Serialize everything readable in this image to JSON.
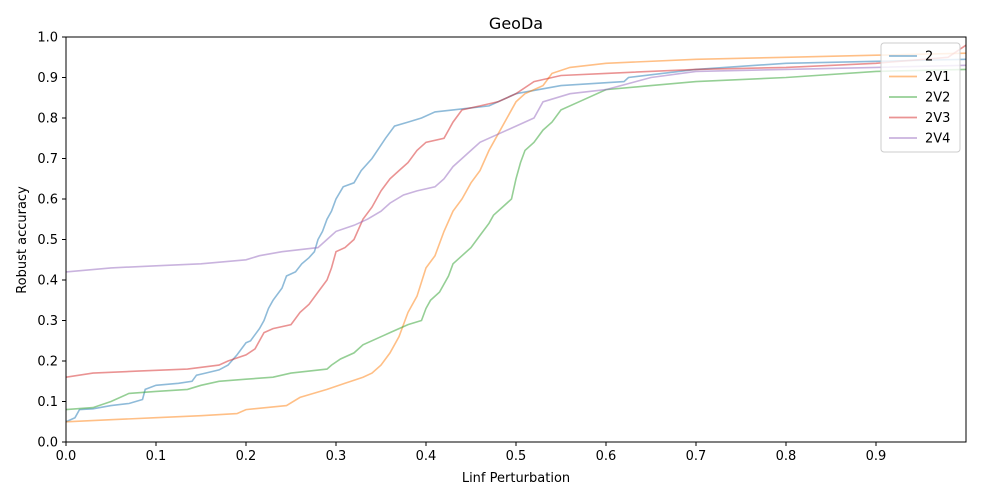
{
  "chart_data": {
    "type": "line",
    "title": "GeoDa",
    "xlabel": "Linf Perturbation",
    "ylabel": "Robust accuracy",
    "xlim": [
      0,
      1.0
    ],
    "ylim": [
      0,
      1.0
    ],
    "xticks": [
      "0.0",
      "0.1",
      "0.2",
      "0.3",
      "0.4",
      "0.5",
      "0.6",
      "0.7",
      "0.8",
      "0.9"
    ],
    "yticks": [
      "0.0",
      "0.1",
      "0.2",
      "0.3",
      "0.4",
      "0.5",
      "0.6",
      "0.7",
      "0.8",
      "0.9",
      "1.0"
    ],
    "grid": false,
    "legend_position": "top-right",
    "series": [
      {
        "name": "2",
        "color": "#1f77b4",
        "points": [
          [
            0.0,
            0.05
          ],
          [
            0.01,
            0.06
          ],
          [
            0.015,
            0.08
          ],
          [
            0.03,
            0.082
          ],
          [
            0.05,
            0.09
          ],
          [
            0.07,
            0.095
          ],
          [
            0.085,
            0.105
          ],
          [
            0.088,
            0.13
          ],
          [
            0.1,
            0.14
          ],
          [
            0.125,
            0.145
          ],
          [
            0.14,
            0.15
          ],
          [
            0.145,
            0.165
          ],
          [
            0.155,
            0.17
          ],
          [
            0.17,
            0.178
          ],
          [
            0.18,
            0.19
          ],
          [
            0.19,
            0.215
          ],
          [
            0.2,
            0.245
          ],
          [
            0.205,
            0.25
          ],
          [
            0.215,
            0.28
          ],
          [
            0.22,
            0.3
          ],
          [
            0.225,
            0.33
          ],
          [
            0.23,
            0.35
          ],
          [
            0.24,
            0.38
          ],
          [
            0.245,
            0.41
          ],
          [
            0.255,
            0.42
          ],
          [
            0.262,
            0.44
          ],
          [
            0.27,
            0.455
          ],
          [
            0.276,
            0.47
          ],
          [
            0.28,
            0.5
          ],
          [
            0.285,
            0.52
          ],
          [
            0.29,
            0.55
          ],
          [
            0.295,
            0.57
          ],
          [
            0.3,
            0.6
          ],
          [
            0.308,
            0.63
          ],
          [
            0.32,
            0.64
          ],
          [
            0.328,
            0.67
          ],
          [
            0.34,
            0.7
          ],
          [
            0.346,
            0.72
          ],
          [
            0.355,
            0.75
          ],
          [
            0.365,
            0.78
          ],
          [
            0.38,
            0.79
          ],
          [
            0.395,
            0.8
          ],
          [
            0.41,
            0.815
          ],
          [
            0.43,
            0.82
          ],
          [
            0.47,
            0.83
          ],
          [
            0.5,
            0.86
          ],
          [
            0.55,
            0.88
          ],
          [
            0.62,
            0.89
          ],
          [
            0.625,
            0.9
          ],
          [
            0.7,
            0.92
          ],
          [
            0.8,
            0.935
          ],
          [
            0.9,
            0.94
          ],
          [
            1.0,
            0.945
          ]
        ]
      },
      {
        "name": "2V1",
        "color": "#ff7f0e",
        "points": [
          [
            0.0,
            0.05
          ],
          [
            0.05,
            0.055
          ],
          [
            0.1,
            0.06
          ],
          [
            0.15,
            0.065
          ],
          [
            0.19,
            0.07
          ],
          [
            0.2,
            0.08
          ],
          [
            0.245,
            0.09
          ],
          [
            0.26,
            0.11
          ],
          [
            0.275,
            0.12
          ],
          [
            0.29,
            0.13
          ],
          [
            0.31,
            0.145
          ],
          [
            0.33,
            0.16
          ],
          [
            0.34,
            0.17
          ],
          [
            0.35,
            0.19
          ],
          [
            0.36,
            0.22
          ],
          [
            0.37,
            0.26
          ],
          [
            0.38,
            0.32
          ],
          [
            0.39,
            0.36
          ],
          [
            0.4,
            0.43
          ],
          [
            0.41,
            0.46
          ],
          [
            0.42,
            0.52
          ],
          [
            0.43,
            0.57
          ],
          [
            0.44,
            0.6
          ],
          [
            0.45,
            0.64
          ],
          [
            0.46,
            0.67
          ],
          [
            0.47,
            0.72
          ],
          [
            0.48,
            0.76
          ],
          [
            0.49,
            0.8
          ],
          [
            0.5,
            0.84
          ],
          [
            0.51,
            0.86
          ],
          [
            0.53,
            0.88
          ],
          [
            0.54,
            0.91
          ],
          [
            0.56,
            0.925
          ],
          [
            0.6,
            0.935
          ],
          [
            0.7,
            0.945
          ],
          [
            0.8,
            0.95
          ],
          [
            0.9,
            0.955
          ],
          [
            1.0,
            0.96
          ]
        ]
      },
      {
        "name": "2V2",
        "color": "#2ca02c",
        "points": [
          [
            0.0,
            0.08
          ],
          [
            0.03,
            0.085
          ],
          [
            0.05,
            0.1
          ],
          [
            0.07,
            0.12
          ],
          [
            0.1,
            0.125
          ],
          [
            0.135,
            0.13
          ],
          [
            0.15,
            0.14
          ],
          [
            0.17,
            0.15
          ],
          [
            0.2,
            0.155
          ],
          [
            0.23,
            0.16
          ],
          [
            0.25,
            0.17
          ],
          [
            0.29,
            0.18
          ],
          [
            0.295,
            0.19
          ],
          [
            0.305,
            0.205
          ],
          [
            0.32,
            0.22
          ],
          [
            0.33,
            0.24
          ],
          [
            0.35,
            0.26
          ],
          [
            0.36,
            0.27
          ],
          [
            0.38,
            0.29
          ],
          [
            0.395,
            0.3
          ],
          [
            0.4,
            0.33
          ],
          [
            0.405,
            0.35
          ],
          [
            0.415,
            0.37
          ],
          [
            0.425,
            0.41
          ],
          [
            0.43,
            0.44
          ],
          [
            0.44,
            0.46
          ],
          [
            0.45,
            0.48
          ],
          [
            0.46,
            0.51
          ],
          [
            0.47,
            0.54
          ],
          [
            0.475,
            0.56
          ],
          [
            0.485,
            0.58
          ],
          [
            0.495,
            0.6
          ],
          [
            0.5,
            0.65
          ],
          [
            0.505,
            0.69
          ],
          [
            0.51,
            0.72
          ],
          [
            0.52,
            0.74
          ],
          [
            0.53,
            0.77
          ],
          [
            0.54,
            0.79
          ],
          [
            0.55,
            0.82
          ],
          [
            0.57,
            0.84
          ],
          [
            0.6,
            0.87
          ],
          [
            0.65,
            0.88
          ],
          [
            0.7,
            0.89
          ],
          [
            0.8,
            0.9
          ],
          [
            0.9,
            0.915
          ],
          [
            1.0,
            0.92
          ]
        ]
      },
      {
        "name": "2V3",
        "color": "#d62728",
        "points": [
          [
            0.0,
            0.16
          ],
          [
            0.03,
            0.17
          ],
          [
            0.08,
            0.175
          ],
          [
            0.135,
            0.18
          ],
          [
            0.17,
            0.19
          ],
          [
            0.18,
            0.2
          ],
          [
            0.2,
            0.215
          ],
          [
            0.21,
            0.23
          ],
          [
            0.22,
            0.27
          ],
          [
            0.23,
            0.28
          ],
          [
            0.25,
            0.29
          ],
          [
            0.26,
            0.32
          ],
          [
            0.27,
            0.34
          ],
          [
            0.28,
            0.37
          ],
          [
            0.29,
            0.4
          ],
          [
            0.295,
            0.43
          ],
          [
            0.3,
            0.47
          ],
          [
            0.31,
            0.48
          ],
          [
            0.32,
            0.5
          ],
          [
            0.33,
            0.55
          ],
          [
            0.34,
            0.58
          ],
          [
            0.35,
            0.62
          ],
          [
            0.36,
            0.65
          ],
          [
            0.37,
            0.67
          ],
          [
            0.38,
            0.69
          ],
          [
            0.39,
            0.72
          ],
          [
            0.4,
            0.74
          ],
          [
            0.42,
            0.75
          ],
          [
            0.43,
            0.79
          ],
          [
            0.44,
            0.82
          ],
          [
            0.46,
            0.83
          ],
          [
            0.48,
            0.84
          ],
          [
            0.5,
            0.86
          ],
          [
            0.52,
            0.89
          ],
          [
            0.55,
            0.905
          ],
          [
            0.6,
            0.91
          ],
          [
            0.7,
            0.92
          ],
          [
            0.8,
            0.925
          ],
          [
            0.9,
            0.935
          ],
          [
            0.98,
            0.95
          ],
          [
            1.0,
            0.98
          ]
        ]
      },
      {
        "name": "2V4",
        "color": "#9467bd",
        "points": [
          [
            0.0,
            0.42
          ],
          [
            0.05,
            0.43
          ],
          [
            0.1,
            0.435
          ],
          [
            0.15,
            0.44
          ],
          [
            0.2,
            0.45
          ],
          [
            0.215,
            0.46
          ],
          [
            0.24,
            0.47
          ],
          [
            0.28,
            0.48
          ],
          [
            0.29,
            0.5
          ],
          [
            0.3,
            0.52
          ],
          [
            0.32,
            0.535
          ],
          [
            0.335,
            0.55
          ],
          [
            0.35,
            0.57
          ],
          [
            0.36,
            0.59
          ],
          [
            0.375,
            0.61
          ],
          [
            0.39,
            0.62
          ],
          [
            0.41,
            0.63
          ],
          [
            0.42,
            0.65
          ],
          [
            0.43,
            0.68
          ],
          [
            0.44,
            0.7
          ],
          [
            0.45,
            0.72
          ],
          [
            0.46,
            0.74
          ],
          [
            0.48,
            0.76
          ],
          [
            0.5,
            0.78
          ],
          [
            0.52,
            0.8
          ],
          [
            0.53,
            0.84
          ],
          [
            0.56,
            0.86
          ],
          [
            0.6,
            0.87
          ],
          [
            0.65,
            0.9
          ],
          [
            0.7,
            0.915
          ],
          [
            0.8,
            0.92
          ],
          [
            0.9,
            0.925
          ],
          [
            1.0,
            0.93
          ]
        ]
      }
    ]
  }
}
